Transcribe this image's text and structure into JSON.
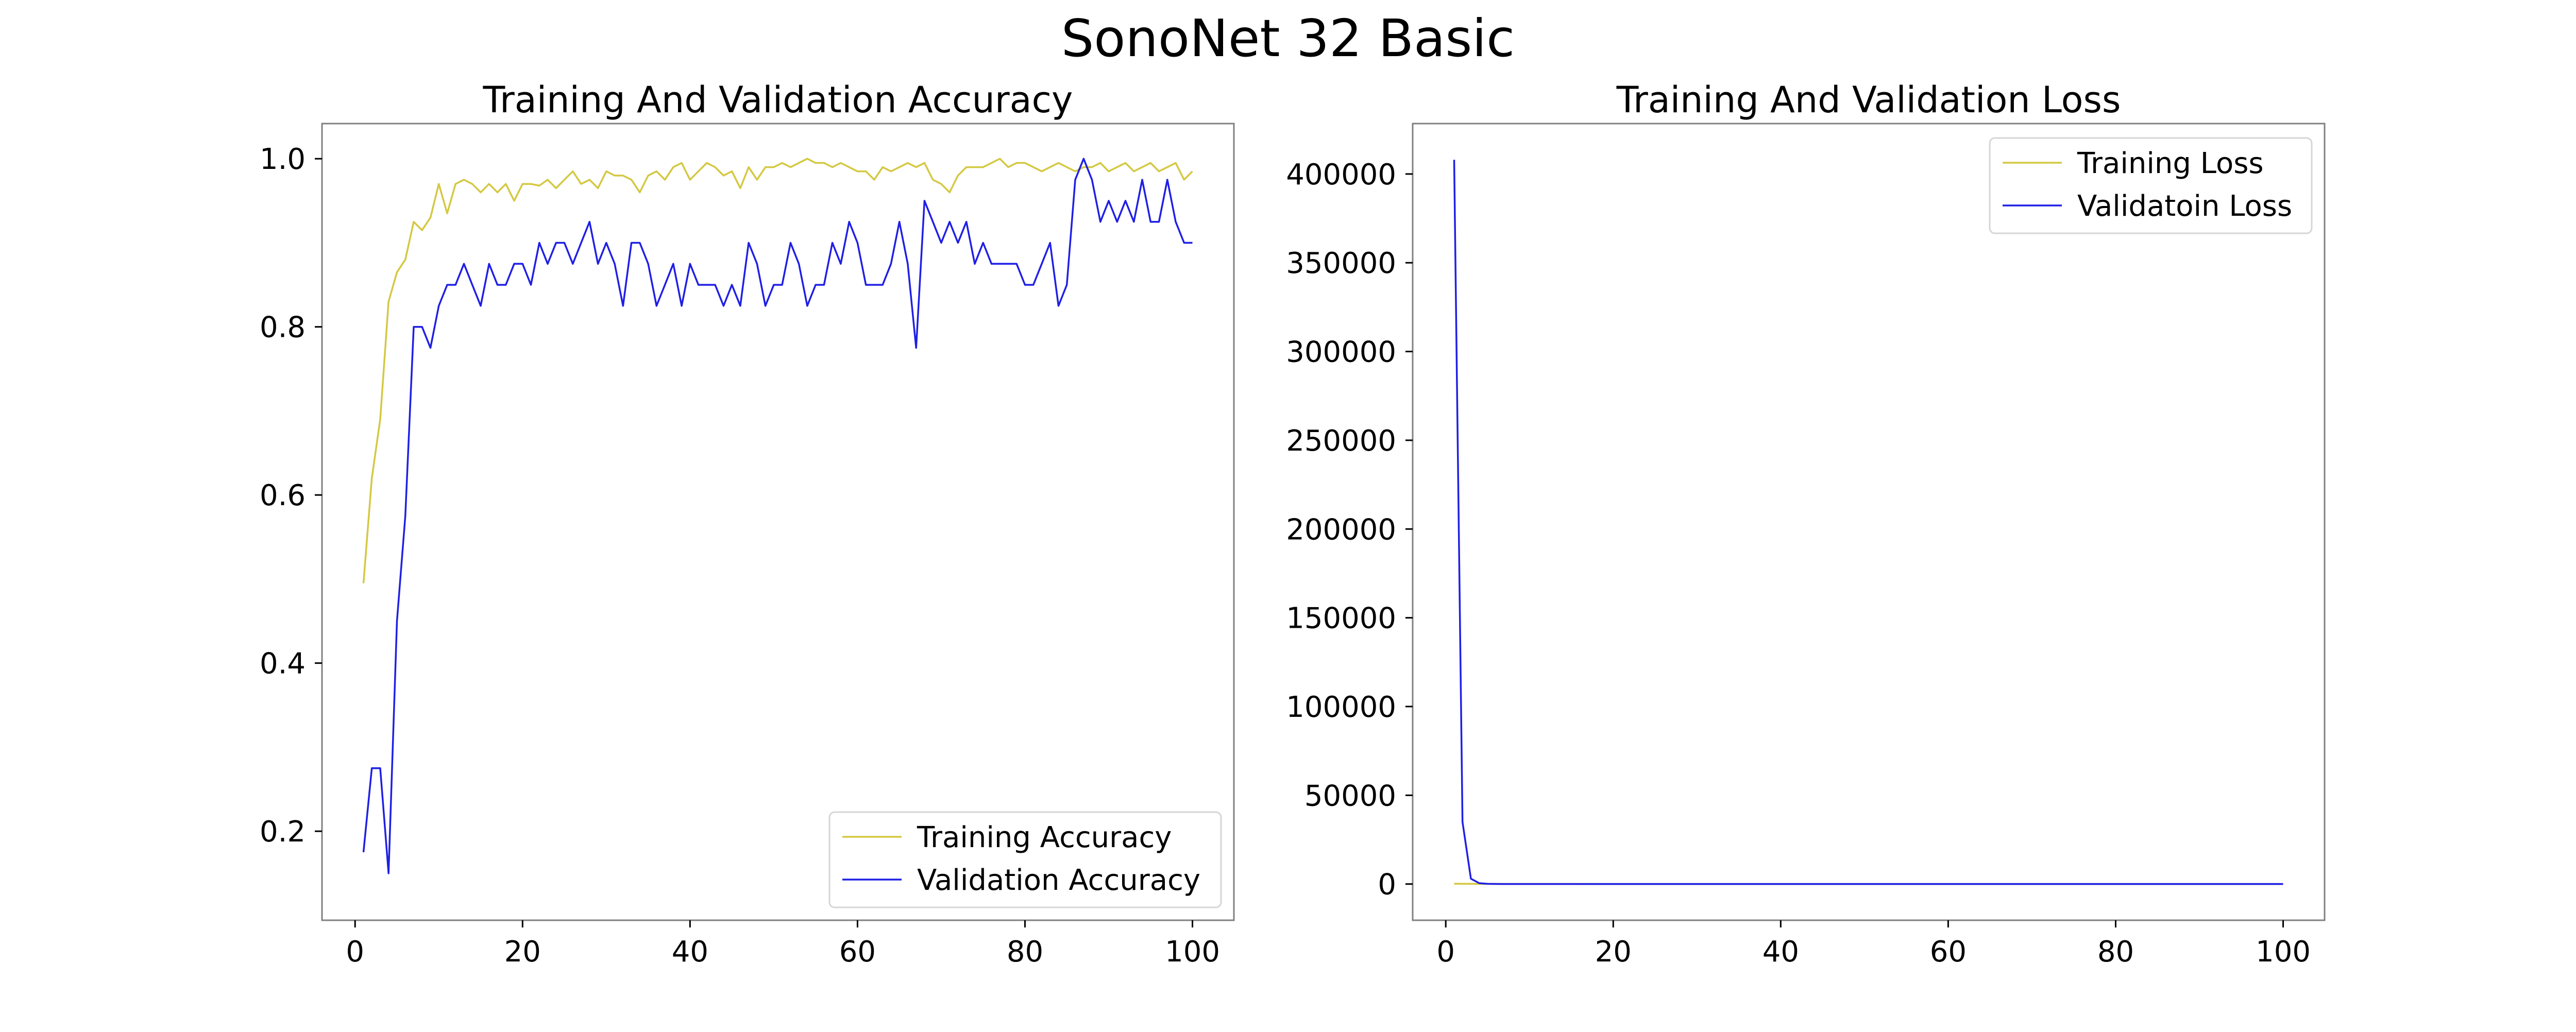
{
  "figure": {
    "title": "SonoNet 32 Basic"
  },
  "chart_data": [
    {
      "type": "line",
      "title": "Training And Validation Accuracy",
      "xlabel": "",
      "ylabel": "",
      "xlim": [
        -3.95,
        104.95
      ],
      "ylim": [
        0.0941,
        1.0418
      ],
      "xticks": [
        0,
        20,
        40,
        60,
        80,
        100
      ],
      "yticks": [
        0.2,
        0.4,
        0.6,
        0.8,
        1.0
      ],
      "ytick_labels": [
        "0.2",
        "0.4",
        "0.6",
        "0.8",
        "1.0"
      ],
      "xtick_labels": [
        "0",
        "20",
        "40",
        "60",
        "80",
        "100"
      ],
      "grid": false,
      "legend_position": "lower-right",
      "series": [
        {
          "name": "Training Accuracy",
          "color": "#d4c842",
          "x": [
            1,
            2,
            3,
            4,
            5,
            6,
            7,
            8,
            9,
            10,
            11,
            12,
            13,
            14,
            15,
            16,
            17,
            18,
            19,
            20,
            21,
            22,
            23,
            24,
            25,
            26,
            27,
            28,
            29,
            30,
            31,
            32,
            33,
            34,
            35,
            36,
            37,
            38,
            39,
            40,
            41,
            42,
            43,
            44,
            45,
            46,
            47,
            48,
            49,
            50,
            51,
            52,
            53,
            54,
            55,
            56,
            57,
            58,
            59,
            60,
            61,
            62,
            63,
            64,
            65,
            66,
            67,
            68,
            69,
            70,
            71,
            72,
            73,
            74,
            75,
            76,
            77,
            78,
            79,
            80,
            81,
            82,
            83,
            84,
            85,
            86,
            87,
            88,
            89,
            90,
            91,
            92,
            93,
            94,
            95,
            96,
            97,
            98,
            99,
            100
          ],
          "values": [
            0.495,
            0.62,
            0.69,
            0.83,
            0.865,
            0.88,
            0.925,
            0.915,
            0.93,
            0.97,
            0.935,
            0.97,
            0.975,
            0.97,
            0.96,
            0.97,
            0.96,
            0.97,
            0.95,
            0.97,
            0.97,
            0.968,
            0.975,
            0.965,
            0.975,
            0.985,
            0.97,
            0.975,
            0.965,
            0.985,
            0.98,
            0.98,
            0.975,
            0.96,
            0.98,
            0.985,
            0.975,
            0.99,
            0.995,
            0.975,
            0.985,
            0.995,
            0.99,
            0.98,
            0.985,
            0.965,
            0.99,
            0.975,
            0.99,
            0.99,
            0.995,
            0.99,
            0.995,
            1.0,
            0.995,
            0.995,
            0.99,
            0.995,
            0.99,
            0.985,
            0.985,
            0.975,
            0.99,
            0.985,
            0.99,
            0.995,
            0.99,
            0.995,
            0.975,
            0.97,
            0.96,
            0.98,
            0.99,
            0.99,
            0.99,
            0.995,
            1.0,
            0.99,
            0.995,
            0.995,
            0.99,
            0.985,
            0.99,
            0.995,
            0.99,
            0.985,
            0.99,
            0.99,
            0.995,
            0.985,
            0.99,
            0.995,
            0.985,
            0.99,
            0.995,
            0.985,
            0.99,
            0.995,
            0.975,
            0.985
          ]
        },
        {
          "name": "Validation Accuracy",
          "color": "#1f1fe6",
          "x": [
            1,
            2,
            3,
            4,
            5,
            6,
            7,
            8,
            9,
            10,
            11,
            12,
            13,
            14,
            15,
            16,
            17,
            18,
            19,
            20,
            21,
            22,
            23,
            24,
            25,
            26,
            27,
            28,
            29,
            30,
            31,
            32,
            33,
            34,
            35,
            36,
            37,
            38,
            39,
            40,
            41,
            42,
            43,
            44,
            45,
            46,
            47,
            48,
            49,
            50,
            51,
            52,
            53,
            54,
            55,
            56,
            57,
            58,
            59,
            60,
            61,
            62,
            63,
            64,
            65,
            66,
            67,
            68,
            69,
            70,
            71,
            72,
            73,
            74,
            75,
            76,
            77,
            78,
            79,
            80,
            81,
            82,
            83,
            84,
            85,
            86,
            87,
            88,
            89,
            90,
            91,
            92,
            93,
            94,
            95,
            96,
            97,
            98,
            99,
            100
          ],
          "values": [
            0.175,
            0.275,
            0.275,
            0.15,
            0.45,
            0.575,
            0.8,
            0.8,
            0.775,
            0.825,
            0.85,
            0.85,
            0.875,
            0.85,
            0.825,
            0.875,
            0.85,
            0.85,
            0.875,
            0.875,
            0.85,
            0.9,
            0.875,
            0.9,
            0.9,
            0.875,
            0.9,
            0.925,
            0.875,
            0.9,
            0.875,
            0.825,
            0.9,
            0.9,
            0.875,
            0.825,
            0.85,
            0.875,
            0.825,
            0.875,
            0.85,
            0.85,
            0.85,
            0.825,
            0.85,
            0.825,
            0.9,
            0.875,
            0.825,
            0.85,
            0.85,
            0.9,
            0.875,
            0.825,
            0.85,
            0.85,
            0.9,
            0.875,
            0.925,
            0.9,
            0.85,
            0.85,
            0.85,
            0.875,
            0.925,
            0.875,
            0.775,
            0.95,
            0.925,
            0.9,
            0.925,
            0.9,
            0.925,
            0.875,
            0.9,
            0.875,
            0.875,
            0.875,
            0.875,
            0.85,
            0.85,
            0.875,
            0.9,
            0.825,
            0.85,
            0.975,
            1.0,
            0.975,
            0.925,
            0.95,
            0.925,
            0.95,
            0.925,
            0.975,
            0.925,
            0.925,
            0.975,
            0.925,
            0.9,
            0.9
          ]
        }
      ]
    },
    {
      "type": "line",
      "title": "Training And Validation Loss",
      "xlabel": "",
      "ylabel": "",
      "xlim": [
        -3.95,
        104.95
      ],
      "ylim": [
        -20400,
        428400
      ],
      "xticks": [
        0,
        20,
        40,
        60,
        80,
        100
      ],
      "yticks": [
        0,
        50000,
        100000,
        150000,
        200000,
        250000,
        300000,
        350000,
        400000
      ],
      "ytick_labels": [
        "0",
        "50000",
        "100000",
        "150000",
        "200000",
        "250000",
        "300000",
        "350000",
        "400000"
      ],
      "xtick_labels": [
        "0",
        "20",
        "40",
        "60",
        "80",
        "100"
      ],
      "grid": false,
      "legend_position": "upper-right",
      "series": [
        {
          "name": "Training Loss",
          "color": "#d4c842",
          "x": [
            1,
            2,
            3,
            4,
            5,
            10,
            20,
            30,
            40,
            50,
            60,
            70,
            80,
            90,
            100
          ],
          "values": [
            200,
            150,
            100,
            80,
            60,
            40,
            30,
            25,
            20,
            18,
            15,
            12,
            10,
            10,
            10
          ]
        },
        {
          "name": "Validatoin Loss",
          "color": "#1f1fe6",
          "x": [
            1,
            2,
            3,
            4,
            5,
            6,
            7,
            8,
            10,
            20,
            30,
            40,
            50,
            60,
            70,
            80,
            90,
            100
          ],
          "values": [
            408000,
            35000,
            3000,
            500,
            100,
            50,
            30,
            20,
            15,
            10,
            10,
            10,
            10,
            10,
            10,
            10,
            10,
            10
          ]
        }
      ]
    }
  ]
}
